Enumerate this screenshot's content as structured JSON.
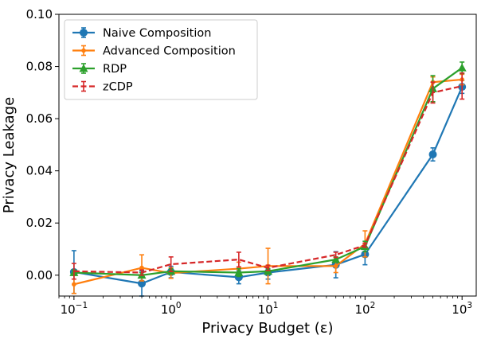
{
  "chart_data": {
    "type": "line",
    "xlabel": "Privacy Budget (ε)",
    "ylabel": "Privacy Leakage",
    "xscale": "log",
    "xlim": [
      0.07,
      1400
    ],
    "ylim": [
      -0.008,
      0.1
    ],
    "x_ticks": [
      {
        "value": 0.1,
        "base": "10",
        "exp": "−1"
      },
      {
        "value": 1,
        "base": "10",
        "exp": "0"
      },
      {
        "value": 10,
        "base": "10",
        "exp": "1"
      },
      {
        "value": 100,
        "base": "10",
        "exp": "2"
      },
      {
        "value": 1000,
        "base": "10",
        "exp": "3"
      }
    ],
    "y_ticks": [
      {
        "value": 0.0,
        "label": "0.00"
      },
      {
        "value": 0.02,
        "label": "0.02"
      },
      {
        "value": 0.04,
        "label": "0.04"
      },
      {
        "value": 0.06,
        "label": "0.06"
      },
      {
        "value": 0.08,
        "label": "0.08"
      },
      {
        "value": 0.1,
        "label": "0.10"
      }
    ],
    "x": [
      0.1,
      0.5,
      1,
      5,
      10,
      50,
      100,
      500,
      1000
    ],
    "legend_position": "top-left",
    "grid": false,
    "series": [
      {
        "name": "Naive Composition",
        "color": "#1f77b4",
        "marker": "circle",
        "dashed": false,
        "values": [
          0.0012,
          -0.0032,
          0.0012,
          -0.0008,
          0.001,
          0.004,
          0.008,
          0.0463,
          0.0722
        ],
        "errors": [
          0.0082,
          0.0048,
          0.0022,
          0.0025,
          0.0025,
          0.005,
          0.004,
          0.0025,
          0.0025
        ]
      },
      {
        "name": "Advanced Composition",
        "color": "#ff7f0e",
        "marker": "small-circle",
        "dashed": false,
        "values": [
          -0.0035,
          0.0028,
          0.0008,
          0.0025,
          0.0035,
          0.0035,
          0.012,
          0.074,
          0.075
        ],
        "errors": [
          0.0035,
          0.005,
          0.002,
          0.0025,
          0.0068,
          0.0025,
          0.005,
          0.002,
          0.002
        ]
      },
      {
        "name": "RDP",
        "color": "#2ca02c",
        "marker": "triangle",
        "dashed": false,
        "values": [
          0.001,
          0.0,
          0.0015,
          0.001,
          0.0015,
          0.006,
          0.011,
          0.0715,
          0.0795
        ],
        "errors": [
          0.001,
          0.001,
          0.001,
          0.0015,
          0.001,
          0.001,
          0.002,
          0.005,
          0.0022
        ]
      },
      {
        "name": "zCDP",
        "color": "#d62728",
        "marker": "none",
        "dashed": true,
        "values": [
          0.0015,
          0.001,
          0.0042,
          0.006,
          0.0028,
          0.0078,
          0.0115,
          0.07,
          0.0725
        ],
        "errors": [
          0.003,
          0.001,
          0.0028,
          0.0028,
          0.001,
          0.001,
          0.0008,
          0.004,
          0.005
        ]
      }
    ]
  }
}
